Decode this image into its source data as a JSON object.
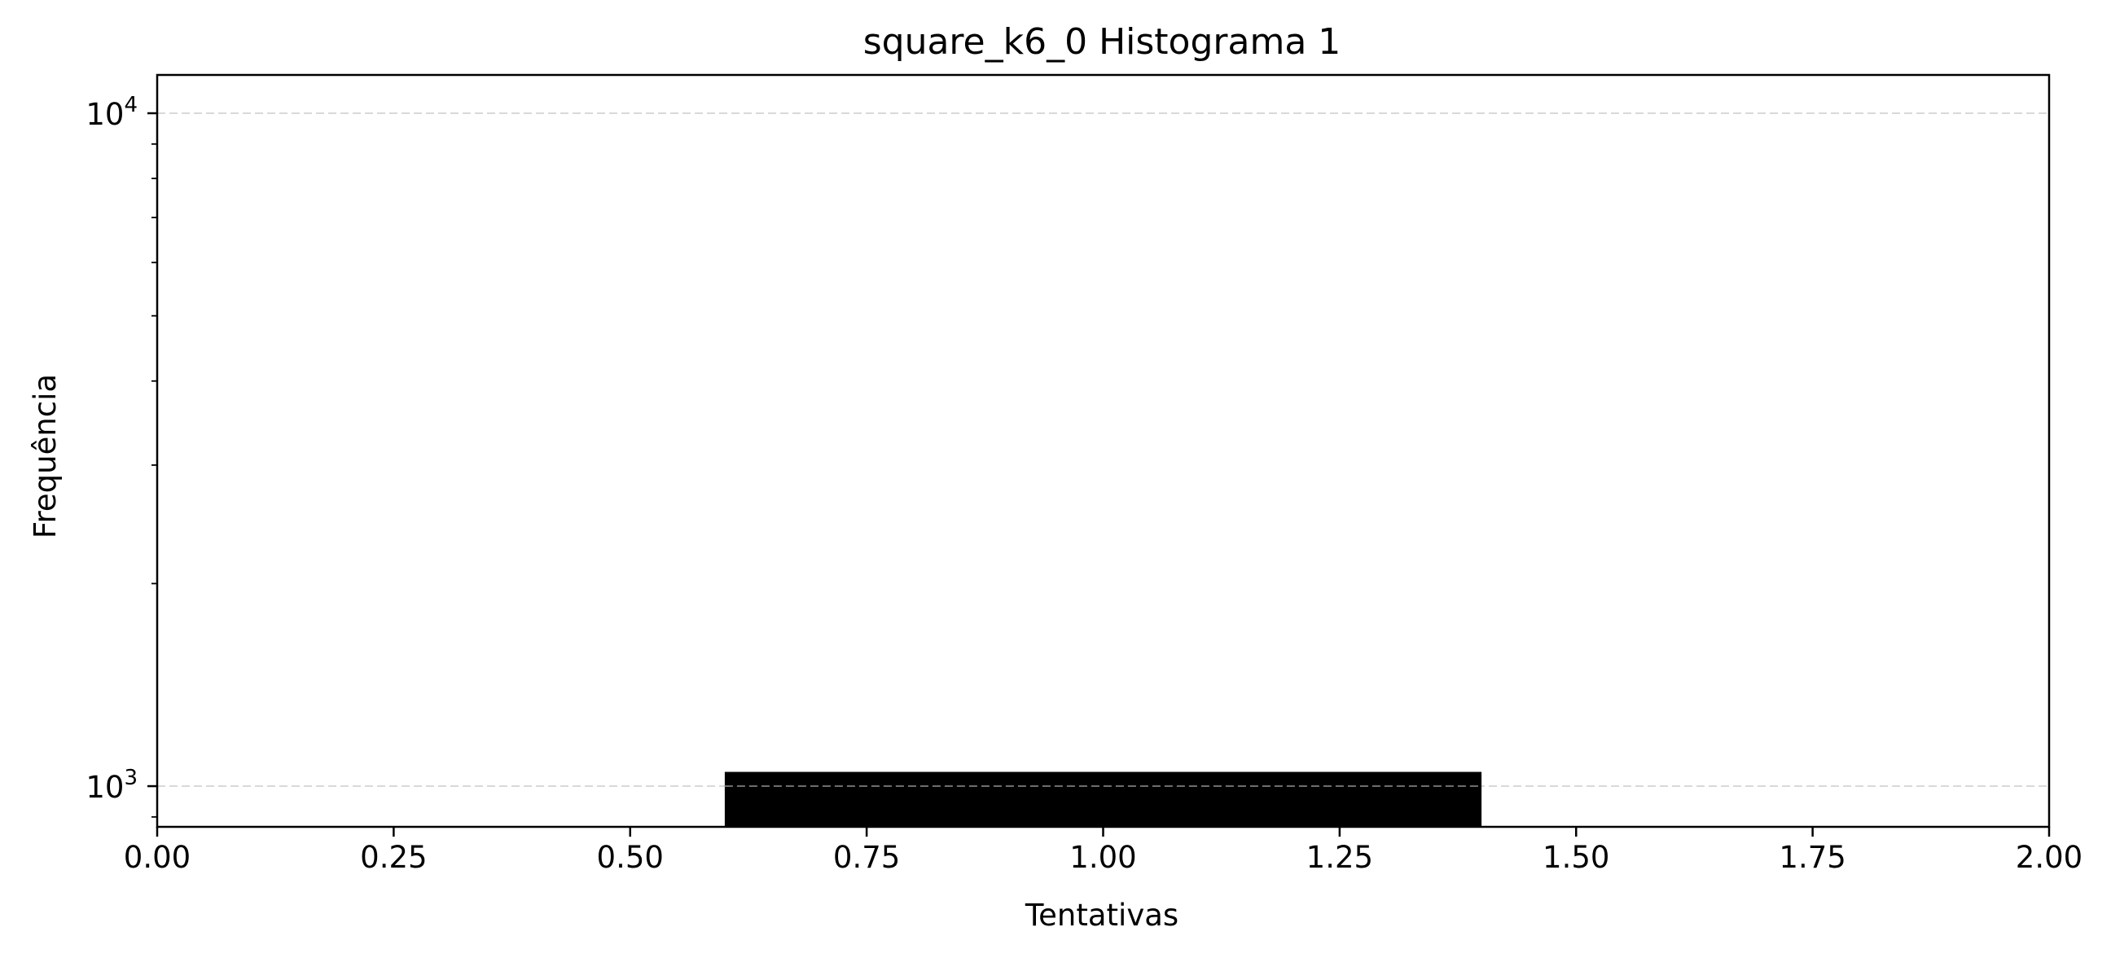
{
  "chart_data": {
    "type": "bar",
    "title": "square_k6_0 Histograma 1",
    "xlabel": "Tentativas",
    "ylabel": "Frequência",
    "xlim": [
      0,
      2
    ],
    "ylim": [
      870,
      11400
    ],
    "yscale": "log",
    "grid": {
      "y": true,
      "x": false,
      "style": "dashed"
    },
    "x_ticks": [
      {
        "value": 0.0,
        "label": "0.00"
      },
      {
        "value": 0.25,
        "label": "0.25"
      },
      {
        "value": 0.5,
        "label": "0.50"
      },
      {
        "value": 0.75,
        "label": "0.75"
      },
      {
        "value": 1.0,
        "label": "1.00"
      },
      {
        "value": 1.25,
        "label": "1.25"
      },
      {
        "value": 1.5,
        "label": "1.50"
      },
      {
        "value": 1.75,
        "label": "1.75"
      },
      {
        "value": 2.0,
        "label": "2.00"
      }
    ],
    "y_ticks": [
      {
        "value": 1000,
        "base": "10",
        "exp": "3"
      },
      {
        "value": 10000,
        "base": "10",
        "exp": "4"
      }
    ],
    "bars": [
      {
        "x_start": 0.6,
        "x_end": 1.4,
        "value": 1050
      }
    ],
    "colors": {
      "bar": "#000000",
      "grid": "#d9d9d9",
      "axes": "#000000"
    }
  }
}
